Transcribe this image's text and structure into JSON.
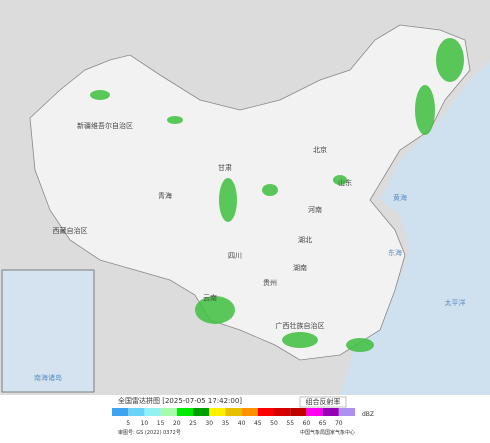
{
  "header": {
    "title": "全国雷达拼图 [2025-07-05 17:42:00]",
    "product": "组合反射率",
    "unit": "dBZ"
  },
  "legend": {
    "values": [
      5,
      10,
      15,
      20,
      25,
      30,
      35,
      40,
      45,
      50,
      55,
      60,
      65,
      70
    ],
    "colors": [
      "#3ea4f0",
      "#6ad2f6",
      "#90f2f2",
      "#a6fcaa",
      "#00ea00",
      "#00a000",
      "#fff000",
      "#e6c000",
      "#ff9000",
      "#ff0000",
      "#d60000",
      "#c00000",
      "#ff00f0",
      "#9600b4",
      "#ad90f0"
    ]
  },
  "footer": {
    "review_number": "审图号: GS (2022) 0372号",
    "source": "中国气象局国家气象中心"
  },
  "labels": [
    "新疆维吾尔自治区",
    "西藏自治区",
    "青海",
    "甘肃",
    "四川",
    "云南",
    "贵州",
    "广西壮族自治区",
    "湖南",
    "湖北",
    "河南",
    "山东",
    "北京",
    "黄海",
    "东海",
    "太平洋",
    "南海诸岛"
  ]
}
